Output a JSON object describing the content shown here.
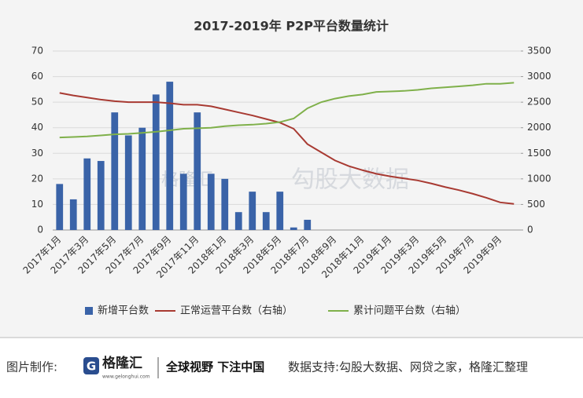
{
  "chart_data": {
    "type": "bar-line",
    "title": "2017-2019年 P2P平台数量统计",
    "categories": [
      "2017年1月",
      null,
      "2017年3月",
      null,
      "2017年5月",
      null,
      "2017年7月",
      null,
      "2017年9月",
      null,
      "2017年11月",
      null,
      "2018年1月",
      null,
      "2018年3月",
      null,
      "2018年5月",
      null,
      "2018年7月",
      null,
      "2018年9月",
      null,
      "2018年11月",
      null,
      "2019年1月",
      null,
      "2019年3月",
      null,
      "2019年5月",
      null,
      "2019年7月",
      null,
      "2019年9月",
      null
    ],
    "series": [
      {
        "name": "新增平台数",
        "type": "bar",
        "color": "#3a63a8",
        "values": [
          18,
          12,
          28,
          27,
          46,
          37,
          40,
          53,
          58,
          22,
          46,
          22,
          20,
          7,
          15,
          7,
          15,
          1,
          4,
          null,
          null,
          null,
          null,
          null,
          null,
          null,
          null,
          null,
          null,
          null,
          null,
          null,
          null,
          null
        ]
      },
      {
        "name": "正常运营平台数（右轴）",
        "type": "line",
        "axis": "y2",
        "color": "#a83a32",
        "values": [
          2680,
          2630,
          2590,
          2550,
          2520,
          2500,
          2500,
          2500,
          2480,
          2450,
          2450,
          2420,
          2360,
          2300,
          2240,
          2170,
          2100,
          1980,
          1680,
          1520,
          1360,
          1250,
          1170,
          1100,
          1050,
          1010,
          970,
          910,
          840,
          780,
          710,
          630,
          540,
          510
        ]
      },
      {
        "name": "累计问题平台数（右轴）",
        "type": "line",
        "axis": "y2",
        "color": "#7fb04a",
        "values": [
          1810,
          1820,
          1830,
          1850,
          1870,
          1880,
          1900,
          1920,
          1950,
          1980,
          1990,
          2000,
          2030,
          2050,
          2060,
          2080,
          2110,
          2180,
          2380,
          2500,
          2570,
          2620,
          2650,
          2700,
          2710,
          2720,
          2740,
          2770,
          2790,
          2810,
          2830,
          2860,
          2860,
          2880
        ]
      }
    ],
    "ylim": [
      0,
      70
    ],
    "yticks": [
      0,
      10,
      20,
      30,
      40,
      50,
      60,
      70
    ],
    "y2lim": [
      0,
      3500
    ],
    "y2ticks": [
      0,
      500,
      1000,
      1500,
      2000,
      2500,
      3000,
      3500
    ],
    "grid": true,
    "legend": "bottom"
  },
  "watermark": {
    "left": "格隆汇",
    "right": "勾股大数据"
  },
  "footer": {
    "label": "图片制作:",
    "logo": "格隆汇",
    "logo_url": "www.gelonghui.com",
    "slogan": "全球视野 下注中国",
    "source": "数据支持:勾股大数据、网贷之家，格隆汇整理"
  }
}
